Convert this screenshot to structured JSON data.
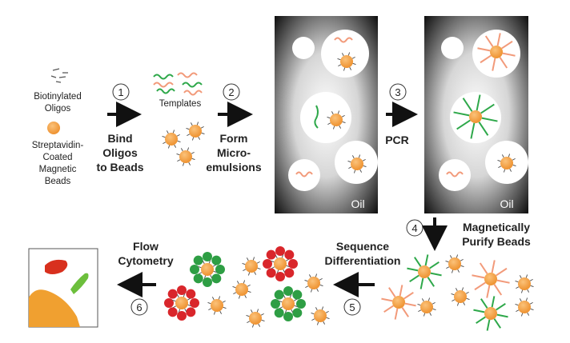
{
  "legend": {
    "oligos_line1": "Biotinylated",
    "oligos_line2": "Oligos",
    "beads_line1": "Streptavidin-",
    "beads_line2": "Coated",
    "beads_line3": "Magnetic",
    "beads_line4": "Beads"
  },
  "templates_label": "Templates",
  "oil_label": "Oil",
  "steps": [
    {
      "number": "1",
      "line1": "Bind",
      "line2": "Oligos",
      "line3": "to Beads"
    },
    {
      "number": "2",
      "line1": "Form",
      "line2": "Micro-",
      "line3": "emulsions"
    },
    {
      "number": "3",
      "line1": "PCR"
    },
    {
      "number": "4",
      "line1": "Magnetically",
      "line2": "Purify Beads"
    },
    {
      "number": "5",
      "line1": "Sequence",
      "line2": "Differentiation"
    },
    {
      "number": "6",
      "line1": "Flow",
      "line2": "Cytometry"
    }
  ],
  "colors": {
    "bead": "#f2a03d",
    "bead_outline": "#d07a1a",
    "template": "#f29a7a",
    "oligo_green": "#2ea84a",
    "red_probe": "#d9262b",
    "green_probe": "#2e9e44",
    "flow_orange": "#f0a030",
    "flow_red": "#d8301e",
    "flow_green": "#6cbf3c"
  }
}
